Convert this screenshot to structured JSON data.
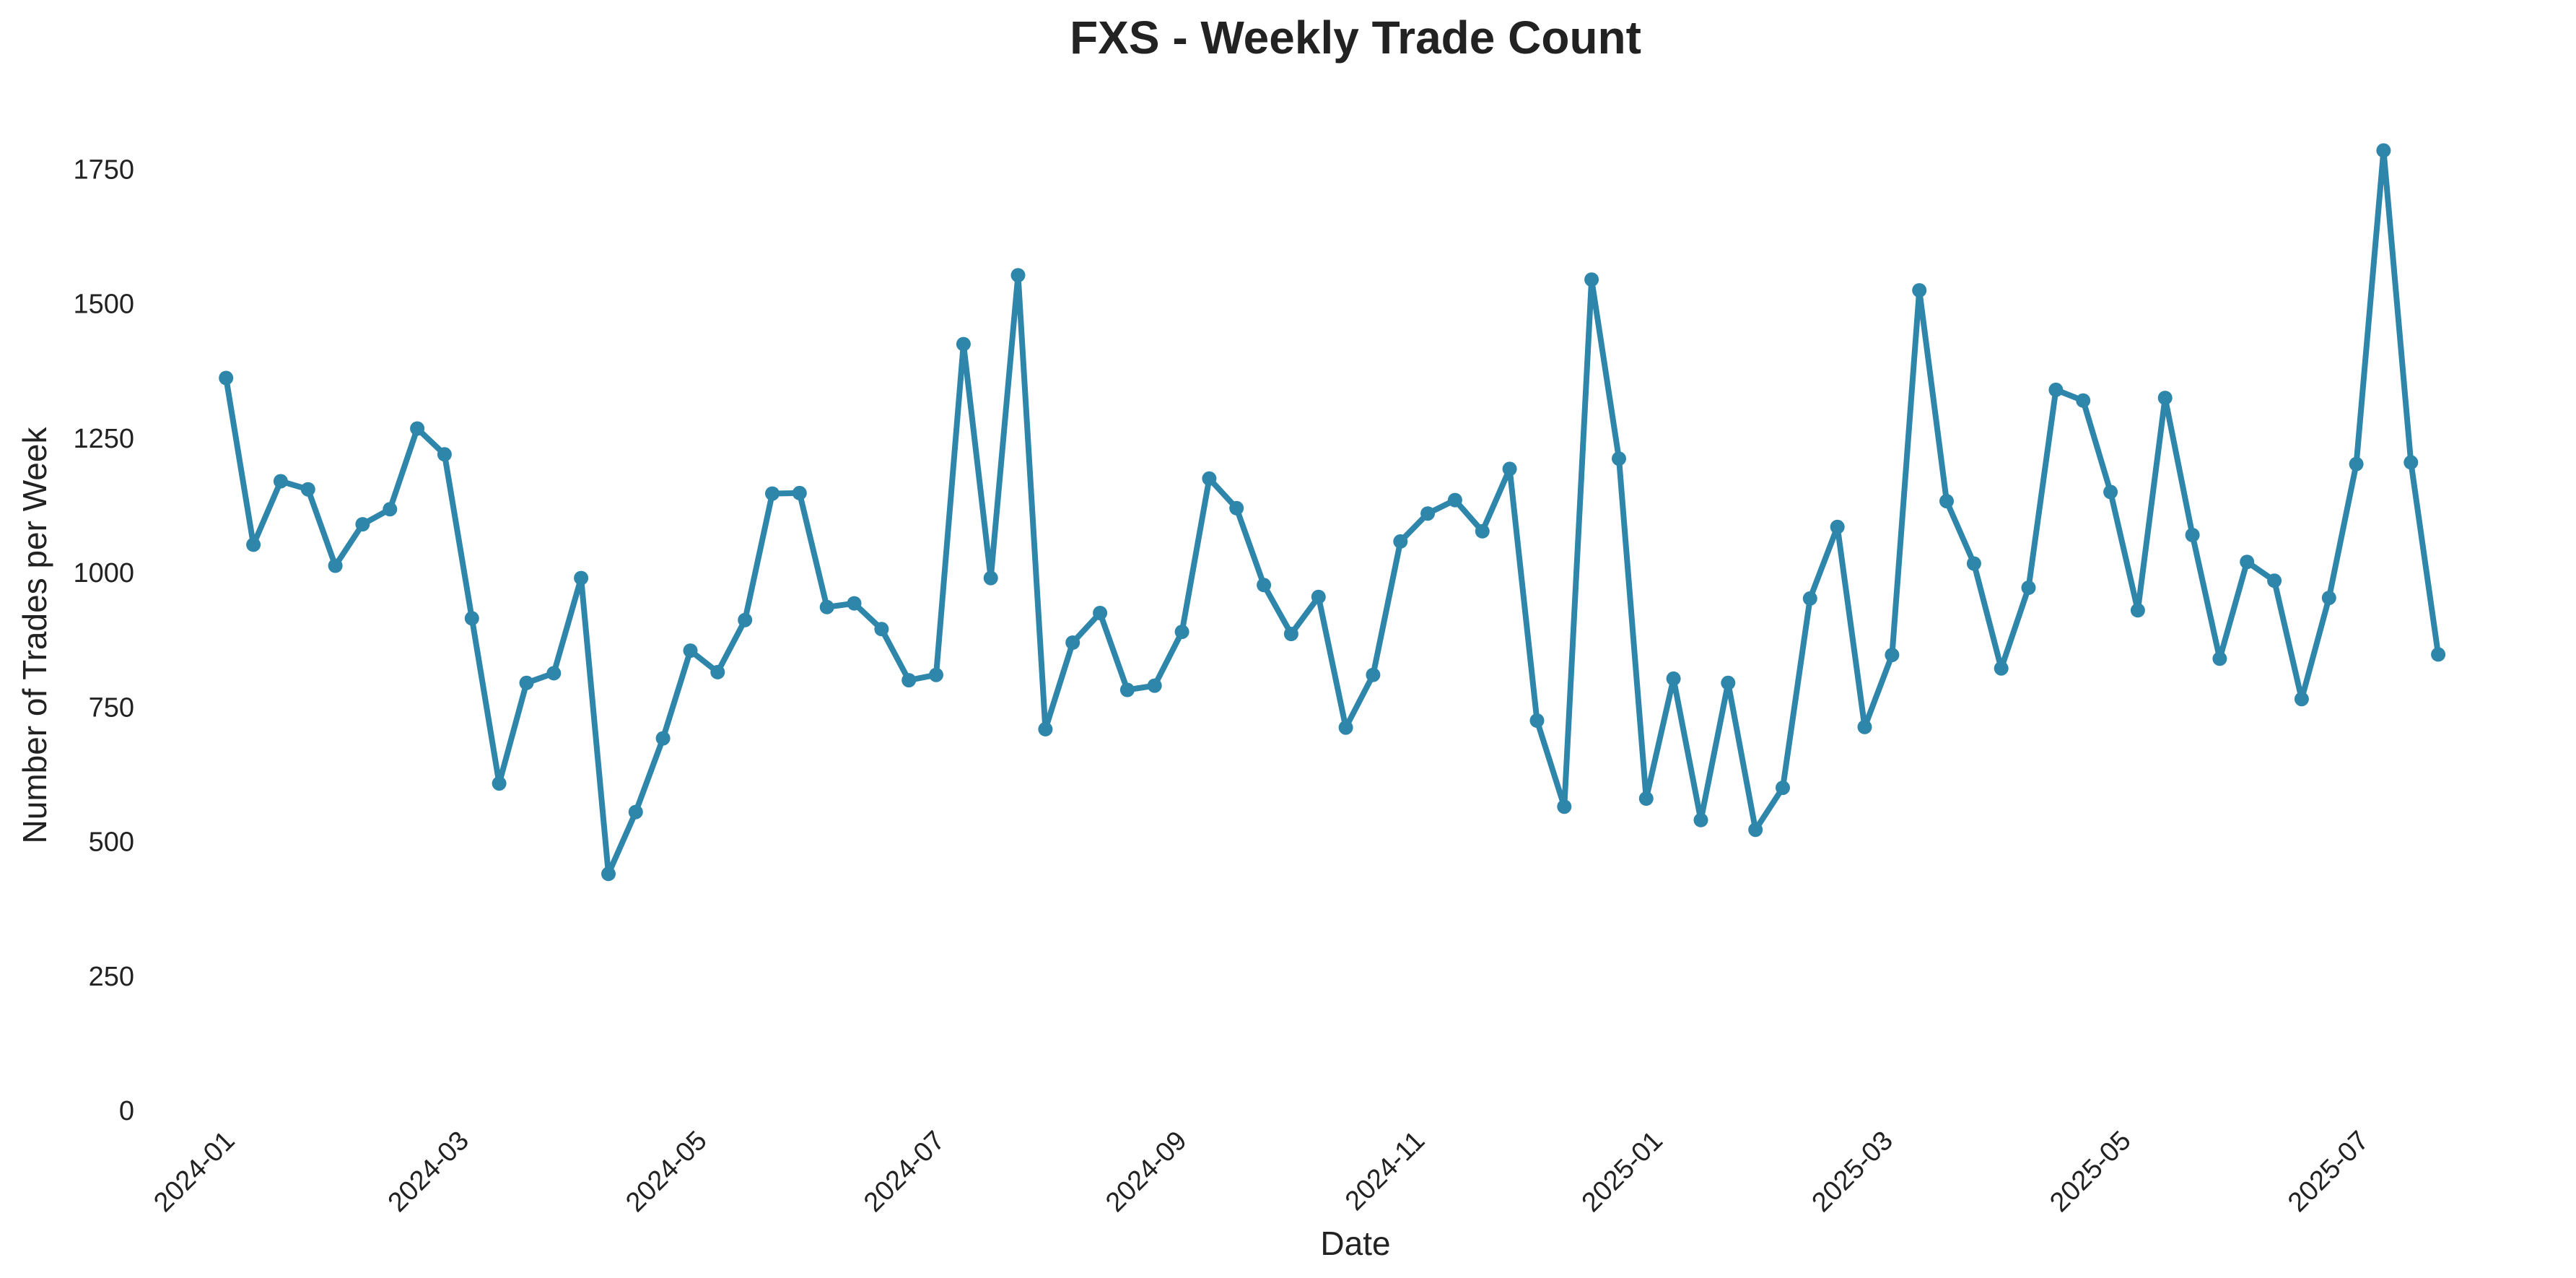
{
  "chart_data": {
    "type": "line",
    "title": "FXS - Weekly Trade Count",
    "xlabel": "Date",
    "ylabel": "Number of Trades per Week",
    "ylim": [
      0,
      1850
    ],
    "y_ticks": [
      0,
      250,
      500,
      750,
      1000,
      1250,
      1500,
      1750
    ],
    "x_range": [
      "2023-12-24",
      "2025-08-07"
    ],
    "x_ticks": [
      "2024-01",
      "2024-03",
      "2024-05",
      "2024-07",
      "2024-09",
      "2024-11",
      "2025-01",
      "2025-03",
      "2025-05",
      "2025-07"
    ],
    "grid": false,
    "line_color": "#2e86ab",
    "series": [
      {
        "x": [
          "2024-01-01",
          "2024-01-08",
          "2024-01-15",
          "2024-01-22",
          "2024-01-29",
          "2024-02-05",
          "2024-02-12",
          "2024-02-19",
          "2024-02-26",
          "2024-03-04",
          "2024-03-11",
          "2024-03-18",
          "2024-03-25",
          "2024-04-01",
          "2024-04-08",
          "2024-04-15",
          "2024-04-22",
          "2024-04-29",
          "2024-05-06",
          "2024-05-13",
          "2024-05-20",
          "2024-05-27",
          "2024-06-03",
          "2024-06-10",
          "2024-06-17",
          "2024-06-24",
          "2024-07-01",
          "2024-07-08",
          "2024-07-15",
          "2024-07-22",
          "2024-07-29",
          "2024-08-05",
          "2024-08-12",
          "2024-08-19",
          "2024-08-26",
          "2024-09-02",
          "2024-09-09",
          "2024-09-16",
          "2024-09-23",
          "2024-09-30",
          "2024-10-07",
          "2024-10-14",
          "2024-10-21",
          "2024-10-28",
          "2024-11-04",
          "2024-11-11",
          "2024-11-18",
          "2024-11-25",
          "2024-12-02",
          "2024-12-09",
          "2024-12-16",
          "2024-12-23",
          "2024-12-30",
          "2025-01-06",
          "2025-01-13",
          "2025-01-20",
          "2025-01-27",
          "2025-02-03",
          "2025-02-10",
          "2025-02-17",
          "2025-02-24",
          "2025-03-03",
          "2025-03-10",
          "2025-03-17",
          "2025-03-24",
          "2025-03-31",
          "2025-04-07",
          "2025-04-14",
          "2025-04-21",
          "2025-04-28",
          "2025-05-05",
          "2025-05-12",
          "2025-05-19",
          "2025-05-26",
          "2025-06-02",
          "2025-06-09",
          "2025-06-16",
          "2025-06-23",
          "2025-06-30",
          "2025-07-07",
          "2025-07-14",
          "2025-07-21"
        ],
        "values": [
          1362,
          1052,
          1170,
          1155,
          1013,
          1090,
          1118,
          1268,
          1220,
          915,
          608,
          795,
          813,
          990,
          440,
          555,
          692,
          855,
          815,
          912,
          1147,
          1148,
          936,
          943,
          895,
          800,
          810,
          1425,
          990,
          1553,
          709,
          870,
          925,
          782,
          790,
          890,
          1175,
          1120,
          977,
          886,
          955,
          712,
          810,
          1058,
          1110,
          1135,
          1077,
          1193,
          725,
          565,
          1545,
          1212,
          580,
          803,
          540,
          795,
          522,
          600,
          952,
          1085,
          713,
          847,
          1525,
          1133,
          1017,
          822,
          972,
          1340,
          1320,
          1150,
          930,
          1325,
          1070,
          840,
          1020,
          985,
          765,
          953,
          1202,
          1785,
          1205,
          848
        ]
      }
    ]
  }
}
